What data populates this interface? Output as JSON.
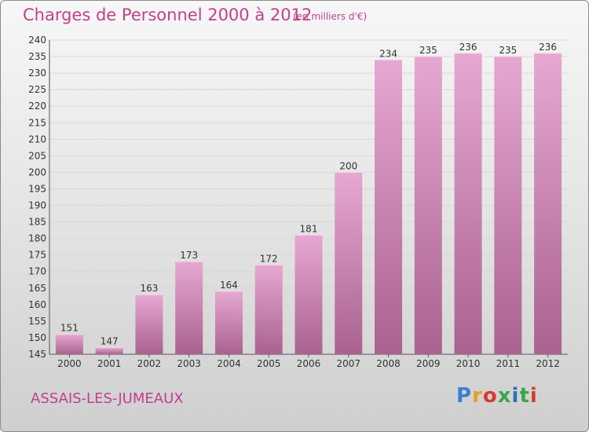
{
  "header": {
    "title": "Charges de Personnel 2000 à 2012",
    "subtitle": "(en milliers d'€)"
  },
  "footer": {
    "town": "ASSAIS-LES-JUMEAUX",
    "logo": "Proxiti",
    "logo_letters": [
      "P",
      "r",
      "o",
      "x",
      "i",
      "t",
      "i"
    ]
  },
  "colors": {
    "accent": "#c33f8e",
    "bar_top": "#e6a8d2",
    "bar_bottom": "#a9628e"
  },
  "chart_data": {
    "type": "bar",
    "title": "Charges de Personnel 2000 à 2012",
    "subtitle": "(en milliers d'€)",
    "categories": [
      "2000",
      "2001",
      "2002",
      "2003",
      "2004",
      "2005",
      "2006",
      "2007",
      "2008",
      "2009",
      "2010",
      "2011",
      "2012"
    ],
    "values": [
      151,
      147,
      163,
      173,
      164,
      172,
      181,
      200,
      234,
      235,
      236,
      235,
      236
    ],
    "ylim": [
      145,
      240
    ],
    "yticks": [
      145,
      150,
      155,
      160,
      165,
      170,
      175,
      180,
      185,
      190,
      195,
      200,
      205,
      210,
      215,
      220,
      225,
      230,
      235,
      240
    ],
    "xlabel": "",
    "ylabel": "",
    "grid": true,
    "data_labels": true
  }
}
